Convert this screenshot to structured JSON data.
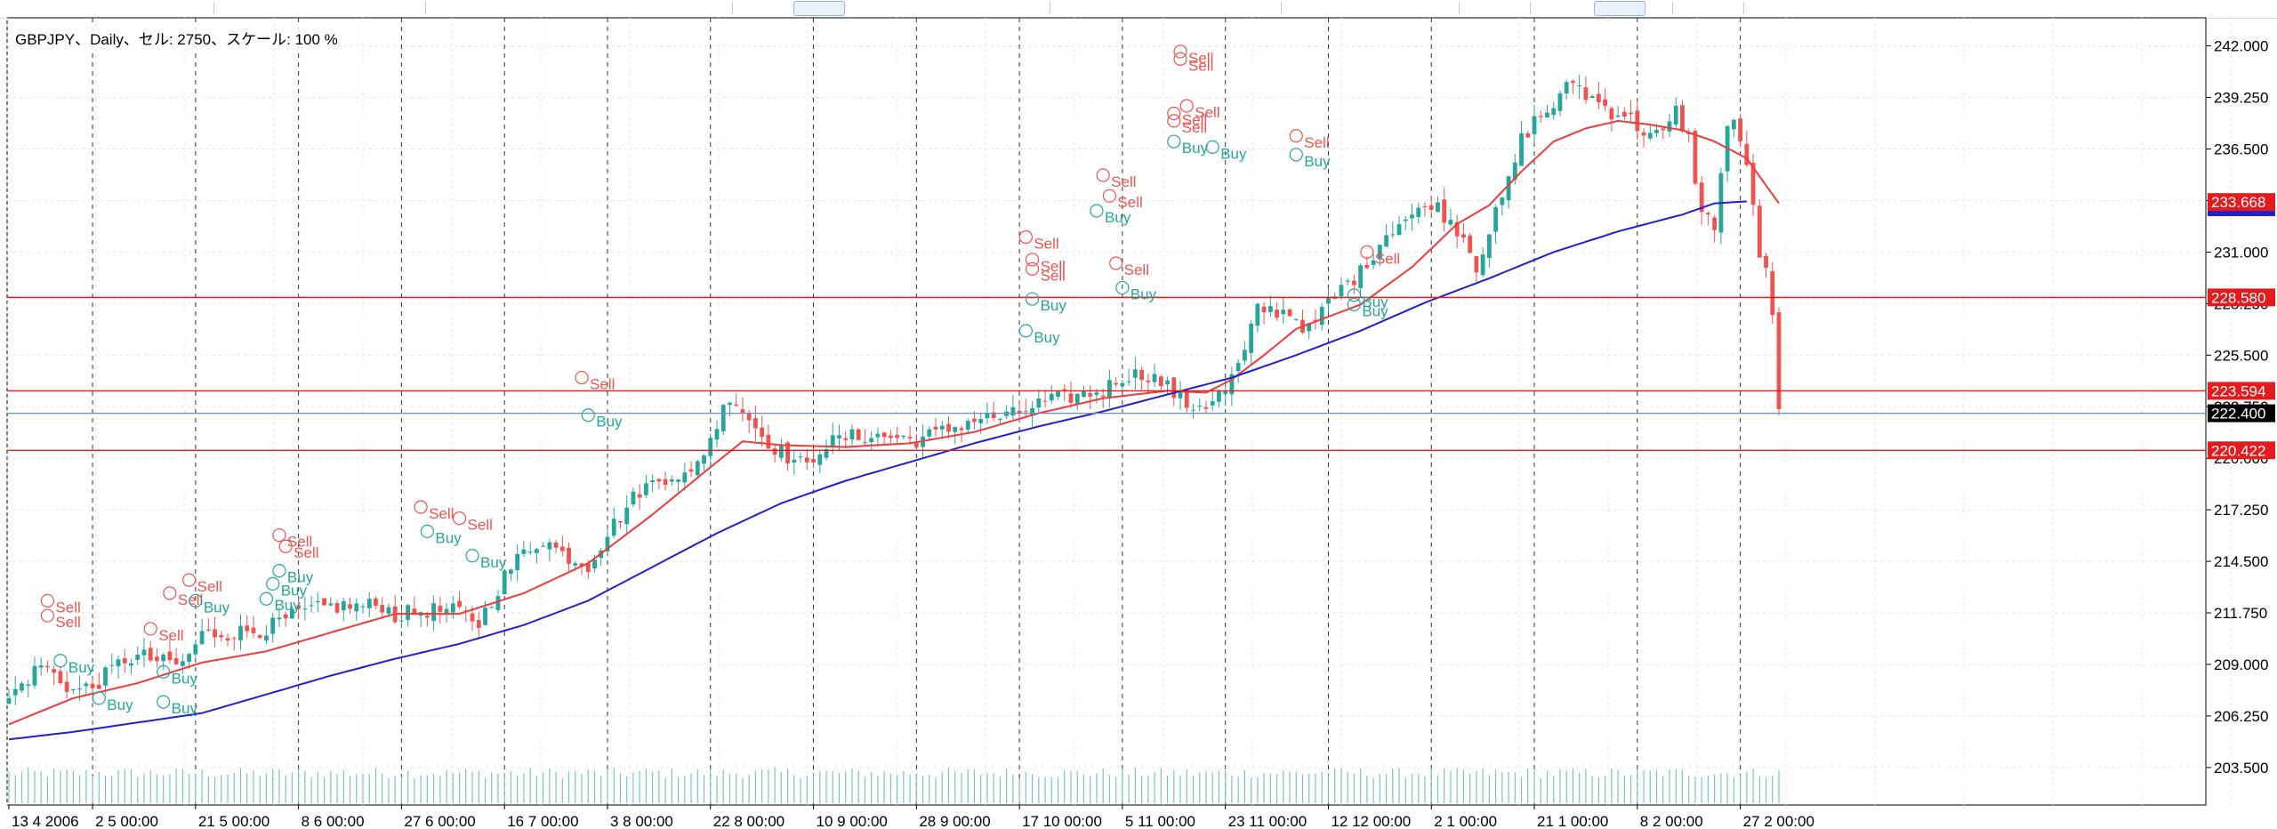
{
  "header": {
    "title": "GBPJPY、Daily、セル: 2750、スケール: 100 %"
  },
  "colors": {
    "background": "#ffffff",
    "grid": "#e6e6e6",
    "candle_up": "#26a69a",
    "candle_down": "#ef5350",
    "ma_fast": "#ef3b3b",
    "ma_slow": "#2020d0",
    "level_line": "#e41a1c",
    "current_price_line": "#6a8fc8",
    "sell_marker": "#ef5350",
    "buy_marker": "#26a69a"
  },
  "chart_data": {
    "type": "candlestick",
    "symbol": "GBPJPY",
    "timeframe": "Daily",
    "y_axis": {
      "ylim": [
        201.5,
        243.5
      ],
      "tick_labels": [
        "242.000",
        "239.250",
        "236.500",
        "233.750",
        "231.000",
        "228.250",
        "225.500",
        "222.750",
        "220.000",
        "217.250",
        "214.500",
        "211.750",
        "209.000",
        "206.250",
        "203.500"
      ],
      "tick_values": [
        242.0,
        239.25,
        236.5,
        233.75,
        231.0,
        228.25,
        225.5,
        222.75,
        220.0,
        217.25,
        214.5,
        211.75,
        209.0,
        206.25,
        203.5
      ]
    },
    "x_axis": {
      "tick_labels": [
        "13 4 2006",
        "2 5 00:00",
        "21 5 00:00",
        "8 6 00:00",
        "27 6 00:00",
        "16 7 00:00",
        "3 8 00:00",
        "22 8 00:00",
        "10 9 00:00",
        "28 9 00:00",
        "17 10 00:00",
        "5 11 00:00",
        "23 11 00:00",
        "12 12 00:00",
        "2 1 00:00",
        "21 1 00:00",
        "8 2 00:00",
        "27 2 00:00"
      ],
      "tick_bars": [
        0,
        13,
        29,
        45,
        61,
        77,
        93,
        109,
        125,
        141,
        157,
        173,
        189,
        205,
        221,
        237,
        253,
        269
      ],
      "separator_bars": [
        13,
        29,
        45,
        61,
        77,
        93,
        109,
        125,
        141,
        157,
        173,
        189,
        205,
        221,
        237,
        253,
        269
      ]
    },
    "bar_count": 276,
    "anchors": [
      [
        0,
        207.2
      ],
      [
        5,
        209.0
      ],
      [
        10,
        207.6
      ],
      [
        13,
        207.8
      ],
      [
        18,
        209.3
      ],
      [
        21,
        209.4
      ],
      [
        24,
        209.1
      ],
      [
        27,
        209.0
      ],
      [
        30,
        210.6
      ],
      [
        35,
        210.7
      ],
      [
        40,
        210.9
      ],
      [
        45,
        211.7
      ],
      [
        50,
        212.1
      ],
      [
        55,
        212.1
      ],
      [
        58,
        212.2
      ],
      [
        60,
        211.6
      ],
      [
        65,
        211.9
      ],
      [
        70,
        211.8
      ],
      [
        73,
        211.2
      ],
      [
        77,
        213.7
      ],
      [
        80,
        215.0
      ],
      [
        83,
        215.7
      ],
      [
        86,
        214.9
      ],
      [
        90,
        214.3
      ],
      [
        93,
        216.0
      ],
      [
        98,
        218.3
      ],
      [
        103,
        219.2
      ],
      [
        106,
        219.0
      ],
      [
        110,
        221.8
      ],
      [
        112,
        223.4
      ],
      [
        114,
        222.6
      ],
      [
        117,
        221.2
      ],
      [
        120,
        220.3
      ],
      [
        124,
        219.5
      ],
      [
        126,
        220.6
      ],
      [
        130,
        221.1
      ],
      [
        134,
        221.2
      ],
      [
        138,
        221.1
      ],
      [
        141,
        221.0
      ],
      [
        145,
        221.4
      ],
      [
        150,
        222.1
      ],
      [
        155,
        222.2
      ],
      [
        157,
        222.4
      ],
      [
        160,
        222.9
      ],
      [
        165,
        223.3
      ],
      [
        170,
        223.6
      ],
      [
        173,
        224.4
      ],
      [
        177,
        224.5
      ],
      [
        180,
        223.8
      ],
      [
        183,
        222.8
      ],
      [
        186,
        222.9
      ],
      [
        189,
        223.6
      ],
      [
        192,
        225.6
      ],
      [
        194,
        228.0
      ],
      [
        196,
        227.9
      ],
      [
        199,
        227.8
      ],
      [
        202,
        226.8
      ],
      [
        205,
        228.3
      ],
      [
        208,
        229.4
      ],
      [
        210,
        229.9
      ],
      [
        212,
        231.0
      ],
      [
        214,
        232.0
      ],
      [
        216,
        232.6
      ],
      [
        219,
        233.1
      ],
      [
        221,
        233.7
      ],
      [
        223,
        233.0
      ],
      [
        226,
        231.9
      ],
      [
        228,
        230.3
      ],
      [
        230,
        232.1
      ],
      [
        233,
        234.7
      ],
      [
        235,
        237.0
      ],
      [
        237,
        238.0
      ],
      [
        239,
        238.5
      ],
      [
        241,
        239.2
      ],
      [
        243,
        240.2
      ],
      [
        245,
        239.4
      ],
      [
        247,
        239.0
      ],
      [
        249,
        238.5
      ],
      [
        251,
        238.4
      ],
      [
        253,
        237.7
      ],
      [
        255,
        237.3
      ],
      [
        257,
        237.2
      ],
      [
        259,
        238.5
      ],
      [
        261,
        237.0
      ],
      [
        263,
        233.0
      ],
      [
        265,
        232.5
      ],
      [
        267,
        237.8
      ],
      [
        268,
        237.7
      ],
      [
        269,
        236.8
      ],
      [
        270,
        235.9
      ],
      [
        271,
        233.2
      ],
      [
        272,
        230.9
      ],
      [
        273,
        229.8
      ],
      [
        274,
        227.5
      ],
      [
        275,
        222.3
      ]
    ],
    "moving_averages": [
      {
        "period": "fast",
        "color": "#ef3b3b",
        "anchors": [
          [
            0,
            205.8
          ],
          [
            10,
            207.2
          ],
          [
            20,
            208.0
          ],
          [
            30,
            209.1
          ],
          [
            40,
            209.7
          ],
          [
            50,
            210.7
          ],
          [
            60,
            211.7
          ],
          [
            70,
            211.7
          ],
          [
            80,
            212.8
          ],
          [
            90,
            214.4
          ],
          [
            100,
            217.0
          ],
          [
            110,
            219.8
          ],
          [
            114,
            220.9
          ],
          [
            120,
            220.7
          ],
          [
            130,
            220.6
          ],
          [
            140,
            220.8
          ],
          [
            150,
            221.4
          ],
          [
            160,
            222.4
          ],
          [
            170,
            223.2
          ],
          [
            180,
            223.6
          ],
          [
            186,
            223.5
          ],
          [
            190,
            224.2
          ],
          [
            195,
            225.5
          ],
          [
            200,
            226.9
          ],
          [
            210,
            228.2
          ],
          [
            218,
            230.2
          ],
          [
            225,
            232.5
          ],
          [
            230,
            233.5
          ],
          [
            235,
            235.3
          ],
          [
            240,
            236.9
          ],
          [
            245,
            237.6
          ],
          [
            250,
            238.0
          ],
          [
            255,
            237.8
          ],
          [
            260,
            237.5
          ],
          [
            265,
            236.9
          ],
          [
            270,
            236.0
          ],
          [
            275,
            233.6
          ]
        ]
      },
      {
        "period": "slow",
        "color": "#2020d0",
        "anchors": [
          [
            0,
            205.0
          ],
          [
            10,
            205.4
          ],
          [
            20,
            205.9
          ],
          [
            30,
            206.4
          ],
          [
            40,
            207.4
          ],
          [
            50,
            208.4
          ],
          [
            60,
            209.3
          ],
          [
            70,
            210.1
          ],
          [
            80,
            211.1
          ],
          [
            90,
            212.4
          ],
          [
            100,
            214.2
          ],
          [
            110,
            216.0
          ],
          [
            120,
            217.6
          ],
          [
            130,
            218.8
          ],
          [
            140,
            219.8
          ],
          [
            150,
            220.8
          ],
          [
            160,
            221.7
          ],
          [
            170,
            222.5
          ],
          [
            180,
            223.4
          ],
          [
            190,
            224.3
          ],
          [
            200,
            225.5
          ],
          [
            210,
            226.8
          ],
          [
            220,
            228.3
          ],
          [
            230,
            229.6
          ],
          [
            240,
            231.0
          ],
          [
            250,
            232.1
          ],
          [
            260,
            233.0
          ],
          [
            265,
            233.6
          ],
          [
            270,
            233.7
          ]
        ]
      }
    ],
    "horizontal_levels": [
      {
        "value": 228.58,
        "label": "228.580"
      },
      {
        "value": 223.594,
        "label": "223.594"
      },
      {
        "value": 220.422,
        "label": "220.422"
      }
    ],
    "current_price": {
      "value": 222.4,
      "label": "222.400"
    },
    "ma_tag": {
      "value": 233.668,
      "label": "233.668"
    },
    "signals": [
      {
        "bar": 6,
        "text": "Sell",
        "price": 212.4,
        "type": "sell"
      },
      {
        "bar": 6,
        "text": "Sell",
        "price": 211.6,
        "type": "sell"
      },
      {
        "bar": 8,
        "text": "Buy",
        "price": 209.2,
        "type": "buy"
      },
      {
        "bar": 14,
        "text": "Buy",
        "price": 207.2,
        "type": "buy"
      },
      {
        "bar": 22,
        "text": "Sell",
        "price": 210.9,
        "type": "sell"
      },
      {
        "bar": 24,
        "text": "Buy",
        "price": 208.6,
        "type": "buy"
      },
      {
        "bar": 24,
        "text": "Buy",
        "price": 207.0,
        "type": "buy"
      },
      {
        "bar": 25,
        "text": "Sell",
        "price": 212.8,
        "type": "sell"
      },
      {
        "bar": 28,
        "text": "Sell",
        "price": 213.5,
        "type": "sell"
      },
      {
        "bar": 29,
        "text": "Buy",
        "price": 212.4,
        "type": "buy"
      },
      {
        "bar": 42,
        "text": "Sell",
        "price": 215.9,
        "type": "sell"
      },
      {
        "bar": 43,
        "text": "Sell",
        "price": 215.3,
        "type": "sell"
      },
      {
        "bar": 42,
        "text": "Buy",
        "price": 214.0,
        "type": "buy"
      },
      {
        "bar": 41,
        "text": "Buy",
        "price": 213.3,
        "type": "buy"
      },
      {
        "bar": 40,
        "text": "Buy",
        "price": 212.5,
        "type": "buy"
      },
      {
        "bar": 64,
        "text": "Sell",
        "price": 217.4,
        "type": "sell"
      },
      {
        "bar": 65,
        "text": "Buy",
        "price": 216.1,
        "type": "buy"
      },
      {
        "bar": 70,
        "text": "Sell",
        "price": 216.8,
        "type": "sell"
      },
      {
        "bar": 72,
        "text": "Buy",
        "price": 214.8,
        "type": "buy"
      },
      {
        "bar": 89,
        "text": "Sell",
        "price": 224.3,
        "type": "sell"
      },
      {
        "bar": 90,
        "text": "Buy",
        "price": 222.3,
        "type": "buy"
      },
      {
        "bar": 158,
        "text": "Sell",
        "price": 231.8,
        "type": "sell"
      },
      {
        "bar": 159,
        "text": "Sell",
        "price": 230.6,
        "type": "sell"
      },
      {
        "bar": 159,
        "text": "Sell",
        "price": 230.1,
        "type": "sell"
      },
      {
        "bar": 159,
        "text": "Buy",
        "price": 228.5,
        "type": "buy"
      },
      {
        "bar": 158,
        "text": "Buy",
        "price": 226.8,
        "type": "buy"
      },
      {
        "bar": 170,
        "text": "Sell",
        "price": 235.1,
        "type": "sell"
      },
      {
        "bar": 171,
        "text": "Sell",
        "price": 234.0,
        "type": "sell"
      },
      {
        "bar": 169,
        "text": "Buy",
        "price": 233.2,
        "type": "buy"
      },
      {
        "bar": 172,
        "text": "Sell",
        "price": 230.4,
        "type": "sell"
      },
      {
        "bar": 173,
        "text": "Buy",
        "price": 229.1,
        "type": "buy"
      },
      {
        "bar": 181,
        "text": "Sell",
        "price": 238.4,
        "type": "sell"
      },
      {
        "bar": 182,
        "text": "Sell",
        "price": 241.7,
        "type": "sell"
      },
      {
        "bar": 182,
        "text": "Sell",
        "price": 241.3,
        "type": "sell"
      },
      {
        "bar": 181,
        "text": "Sell",
        "price": 238.0,
        "type": "sell"
      },
      {
        "bar": 181,
        "text": "Buy",
        "price": 236.9,
        "type": "buy"
      },
      {
        "bar": 183,
        "text": "Sell",
        "price": 238.8,
        "type": "sell"
      },
      {
        "bar": 187,
        "text": "Buy",
        "price": 236.6,
        "type": "buy"
      },
      {
        "bar": 200,
        "text": "Sell",
        "price": 237.2,
        "type": "sell"
      },
      {
        "bar": 200,
        "text": "Buy",
        "price": 236.2,
        "type": "buy"
      },
      {
        "bar": 211,
        "text": "Sell",
        "price": 231.0,
        "type": "sell"
      },
      {
        "bar": 209,
        "text": "Buy",
        "price": 228.7,
        "type": "buy"
      },
      {
        "bar": 209,
        "text": "Buy",
        "price": 228.2,
        "type": "buy"
      }
    ]
  }
}
